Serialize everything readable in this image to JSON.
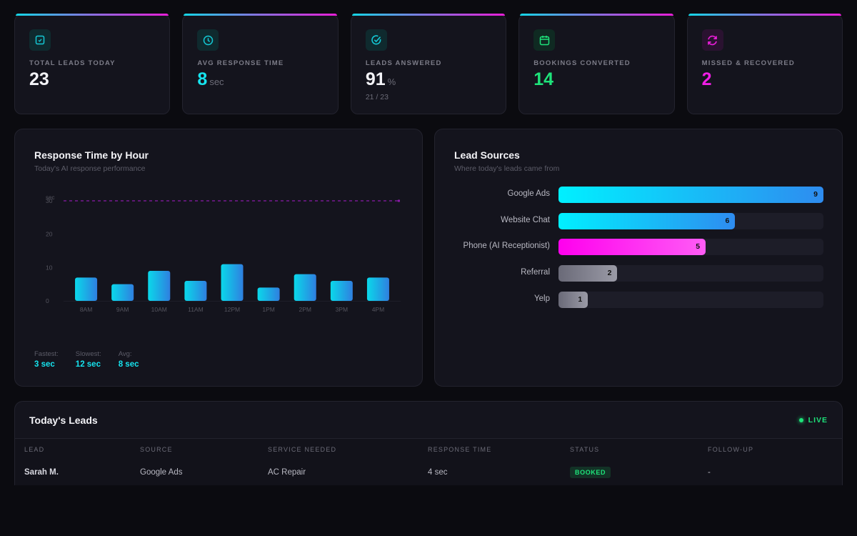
{
  "kpis": [
    {
      "icon": "checkbox-icon",
      "label": "TOTAL LEADS TODAY",
      "value": "23",
      "unit": "",
      "sub": "",
      "color": "#f3f3f7",
      "icon_color": "#14c8d4",
      "icon_bg": "#0f2a2e"
    },
    {
      "icon": "clock-icon",
      "label": "AVG RESPONSE TIME",
      "value": "8",
      "unit": "sec",
      "sub": "",
      "color": "#16e3ee",
      "icon_color": "#14c8d4",
      "icon_bg": "#0f2a2e"
    },
    {
      "icon": "check-circle-icon",
      "label": "LEADS ANSWERED",
      "value": "91",
      "unit": "%",
      "sub": "21 / 23",
      "color": "#f3f3f7",
      "icon_color": "#14c8d4",
      "icon_bg": "#0f2a2e"
    },
    {
      "icon": "calendar-icon",
      "label": "BOOKINGS CONVERTED",
      "value": "14",
      "unit": "",
      "sub": "",
      "color": "#1ee37a",
      "icon_color": "#1ee37a",
      "icon_bg": "#0f2a22"
    },
    {
      "icon": "refresh-icon",
      "label": "MISSED & RECOVERED",
      "value": "2",
      "unit": "",
      "sub": "",
      "color": "#f01ee6",
      "icon_color": "#e81ed8",
      "icon_bg": "#2a1230"
    }
  ],
  "response_panel": {
    "title": "Response Time by Hour",
    "subtitle": "Today's AI response performance",
    "stats": [
      {
        "label": "Fastest:",
        "value": "3 sec"
      },
      {
        "label": "Slowest:",
        "value": "12 sec"
      },
      {
        "label": "Avg:",
        "value": "8 sec"
      }
    ]
  },
  "sources_panel": {
    "title": "Lead Sources",
    "subtitle": "Where today's leads came from"
  },
  "chart_data": [
    {
      "type": "bar",
      "title": "Response Time by Hour",
      "ylabel": "sec",
      "categories": [
        "8AM",
        "9AM",
        "10AM",
        "11AM",
        "12PM",
        "1PM",
        "2PM",
        "3PM",
        "4PM"
      ],
      "values": [
        7,
        5,
        9,
        6,
        11,
        4,
        8,
        6,
        7
      ],
      "ylim": [
        0,
        30
      ],
      "yticks": [
        0,
        10,
        20,
        30
      ],
      "target_line": 30,
      "grid": false
    },
    {
      "type": "bar",
      "orientation": "horizontal",
      "title": "Lead Sources",
      "categories": [
        "Google Ads",
        "Website Chat",
        "Phone (AI Receptionist)",
        "Referral",
        "Yelp"
      ],
      "values": [
        9,
        6,
        5,
        2,
        1
      ],
      "max": 9,
      "colors": [
        [
          "#00f0ff",
          "#2e8cf0"
        ],
        [
          "#00f0ff",
          "#2e8cf0"
        ],
        [
          "#ff00ee",
          "#ff5cf5"
        ],
        [
          "#6a6a78",
          "#9a9aa6"
        ],
        [
          "#6a6a78",
          "#9a9aa6"
        ]
      ]
    }
  ],
  "leads": {
    "title": "Today's Leads",
    "live_label": "LIVE",
    "columns": [
      "LEAD",
      "SOURCE",
      "SERVICE NEEDED",
      "RESPONSE TIME",
      "STATUS",
      "FOLLOW-UP"
    ],
    "rows": [
      {
        "lead": "Sarah M.",
        "source": "Google Ads",
        "service": "AC Repair",
        "response": "4 sec",
        "status": "BOOKED",
        "followup": "-"
      }
    ]
  }
}
